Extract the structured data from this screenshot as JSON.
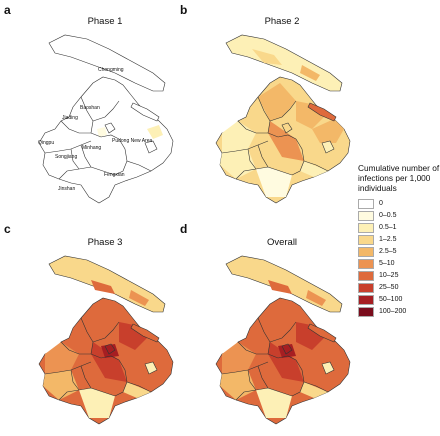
{
  "panels": [
    {
      "letter": "a",
      "title": "Phase 1"
    },
    {
      "letter": "b",
      "title": "Phase 2"
    },
    {
      "letter": "c",
      "title": "Phase 3"
    },
    {
      "letter": "d",
      "title": "Overall"
    }
  ],
  "district_labels": [
    "Chongming",
    "Baoshan",
    "Jiading",
    "Minhang",
    "Pudong New Area",
    "Songjiang",
    "Jinshan",
    "Fengxian",
    "Qingpu"
  ],
  "legend": {
    "title": "Cumulative number of infections per 1,000 individuals",
    "items": [
      {
        "label": "0",
        "color": "#ffffff"
      },
      {
        "label": "0–0.5",
        "color": "#fffbe0"
      },
      {
        "label": "0.5–1",
        "color": "#fdf0b6"
      },
      {
        "label": "1–2.5",
        "color": "#f9d88b"
      },
      {
        "label": "2.5–5",
        "color": "#f3b868"
      },
      {
        "label": "5–10",
        "color": "#ec9352"
      },
      {
        "label": "10–25",
        "color": "#de6a3c"
      },
      {
        "label": "25–50",
        "color": "#c83f2c"
      },
      {
        "label": "50–100",
        "color": "#a61e22"
      },
      {
        "label": "100–200",
        "color": "#7a0c1c"
      }
    ]
  }
}
